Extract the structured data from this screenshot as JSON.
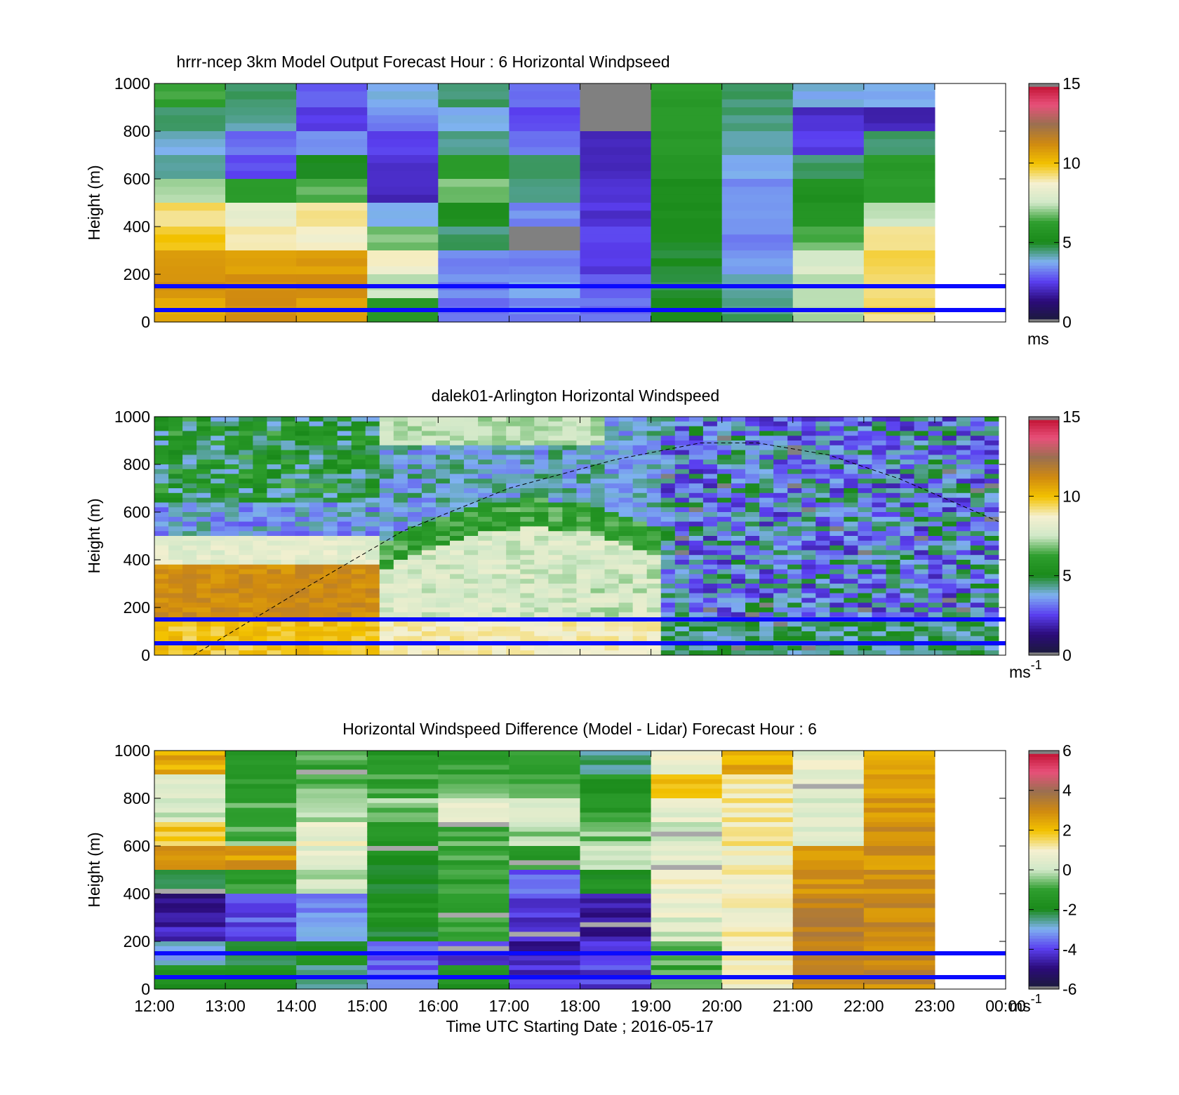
{
  "figure": {
    "xaxis_title": "Time UTC  Starting Date ; 2016-05-17",
    "x_ticks": [
      "12:00",
      "13:00",
      "14:00",
      "15:00",
      "16:00",
      "17:00",
      "18:00",
      "19:00",
      "20:00",
      "21:00",
      "22:00",
      "23:00",
      "00:00"
    ]
  },
  "chart_data": [
    {
      "type": "heatmap",
      "title": "hrrr-ncep 3km Model Output   Forecast Hour : 6 Horizontal Windpseed",
      "ylabel": "Height (m)",
      "xlabel": "",
      "ylim": [
        0,
        1000
      ],
      "y_ticks": [
        "0",
        "200",
        "400",
        "600",
        "800",
        "1000"
      ],
      "x_hours": [
        "12:00",
        "13:00",
        "14:00",
        "15:00",
        "16:00",
        "17:00",
        "18:00",
        "19:00",
        "20:00",
        "21:00",
        "22:00",
        "23:00"
      ],
      "colorbar": {
        "min": 0,
        "max": 15,
        "ticks": [
          "0",
          "5",
          "10",
          "15"
        ],
        "unit": "ms",
        "unit_sup": "",
        "palette": "speed"
      },
      "reference_lines_m": [
        150,
        50
      ],
      "missing_hours": [
        "23:00"
      ],
      "grid": false
    },
    {
      "type": "heatmap",
      "title": "dalek01-Arlington  Horizontal Windspeed",
      "ylabel": "Height (m)",
      "xlabel": "",
      "ylim": [
        0,
        1000
      ],
      "y_ticks": [
        "0",
        "200",
        "400",
        "600",
        "800",
        "1000"
      ],
      "colorbar": {
        "min": 0,
        "max": 15,
        "ticks": [
          "0",
          "5",
          "10",
          "15"
        ],
        "unit": "ms",
        "unit_sup": "-1",
        "palette": "speed"
      },
      "reference_lines_m": [
        150,
        50
      ],
      "boundary_layer_curve": {
        "x_hours": [
          12.55,
          14.0,
          15.5,
          17.0,
          18.5,
          19.7,
          20.5,
          21.5,
          22.5,
          23.9
        ],
        "y_m": [
          0,
          260,
          520,
          700,
          820,
          890,
          890,
          840,
          740,
          560
        ]
      },
      "grid": false
    },
    {
      "type": "heatmap",
      "title": "Horizontal Windspeed Difference (Model - Lidar) Forecast Hour : 6",
      "ylabel": "Height (m)",
      "xlabel": "Time UTC  Starting Date ; 2016-05-17",
      "ylim": [
        0,
        1000
      ],
      "y_ticks": [
        "0",
        "200",
        "400",
        "600",
        "800",
        "1000"
      ],
      "x_hours": [
        "12:00",
        "13:00",
        "14:00",
        "15:00",
        "16:00",
        "17:00",
        "18:00",
        "19:00",
        "20:00",
        "21:00",
        "22:00",
        "23:00"
      ],
      "colorbar": {
        "min": -6,
        "max": 6,
        "ticks": [
          "-6",
          "-4",
          "-2",
          "0",
          "2",
          "4",
          "6"
        ],
        "unit": "ms",
        "unit_sup": "-1",
        "palette": "diff"
      },
      "reference_lines_m": [
        150,
        50
      ],
      "missing_hours": [
        "23:00"
      ],
      "grid": false
    }
  ],
  "colors": {
    "reference_line": "#0a0aff",
    "missing": "#808080",
    "palette_stops": [
      "#1b1b3a",
      "#2b0b7a",
      "#5a3ff0",
      "#7fb2f0",
      "#1a8a1a",
      "#2e9e2e",
      "#d0e8c8",
      "#f5f0d0",
      "#f3c200",
      "#d08a10",
      "#9a7050",
      "#e8507a",
      "#c01030"
    ]
  }
}
